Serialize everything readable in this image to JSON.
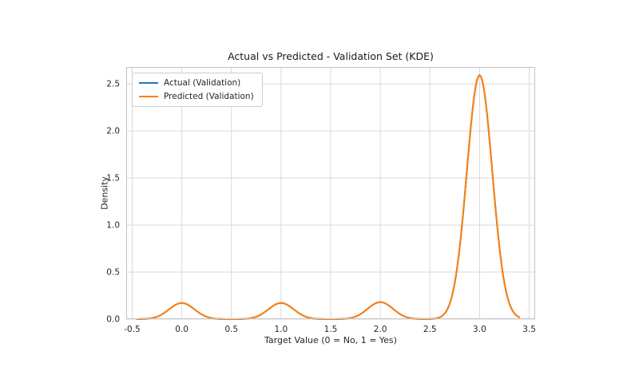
{
  "page": {
    "background": "#ffffff"
  },
  "colors": {
    "grid": "#d9d9d9",
    "spine": "#c4c4c4",
    "tick_text": "#262626",
    "title_text": "#1a1a1a",
    "actual_line": "#1f77b4",
    "predicted_line": "#ff7f0e"
  },
  "chart_data": {
    "type": "line",
    "subtype": "kde",
    "title": "Actual vs Predicted - Validation Set (KDE)",
    "xlabel": "Target Value (0 = No, 1 = Yes)",
    "ylabel": "Density",
    "xlim": [
      -0.56,
      3.56
    ],
    "ylim": [
      0,
      2.68
    ],
    "xticks": [
      -0.5,
      0.0,
      0.5,
      1.0,
      1.5,
      2.0,
      2.5,
      3.0,
      3.5
    ],
    "xtick_labels": [
      "-0.5",
      "0.0",
      "0.5",
      "1.0",
      "1.5",
      "2.0",
      "2.5",
      "3.0",
      "3.5"
    ],
    "yticks": [
      0.0,
      0.5,
      1.0,
      1.5,
      2.0,
      2.5
    ],
    "ytick_labels": [
      "0.0",
      "0.5",
      "1.0",
      "1.5",
      "2.0",
      "2.5"
    ],
    "grid": true,
    "legend_position": "upper left",
    "series": [
      {
        "name": "Actual (Validation)",
        "color": "#1f77b4",
        "line_width": 2,
        "kde": {
          "means": [
            0,
            1,
            2,
            3
          ],
          "weights": [
            0.055,
            0.055,
            0.058,
            0.832
          ],
          "bandwidth": 0.128,
          "range": [
            -0.45,
            3.4
          ]
        },
        "peaks": {
          "x": [
            0,
            1,
            2,
            3
          ],
          "density": [
            0.17,
            0.17,
            0.18,
            2.59
          ]
        }
      },
      {
        "name": "Predicted (Validation)",
        "color": "#ff7f0e",
        "line_width": 2,
        "kde": {
          "means": [
            0,
            1,
            2,
            3
          ],
          "weights": [
            0.055,
            0.055,
            0.058,
            0.832
          ],
          "bandwidth": 0.128,
          "range": [
            -0.45,
            3.4
          ]
        },
        "peaks": {
          "x": [
            0,
            1,
            2,
            3
          ],
          "density": [
            0.17,
            0.17,
            0.18,
            2.59
          ]
        }
      }
    ],
    "note": "Actual and Predicted curves overlap exactly; orange (Predicted) is drawn on top of blue (Actual)."
  }
}
